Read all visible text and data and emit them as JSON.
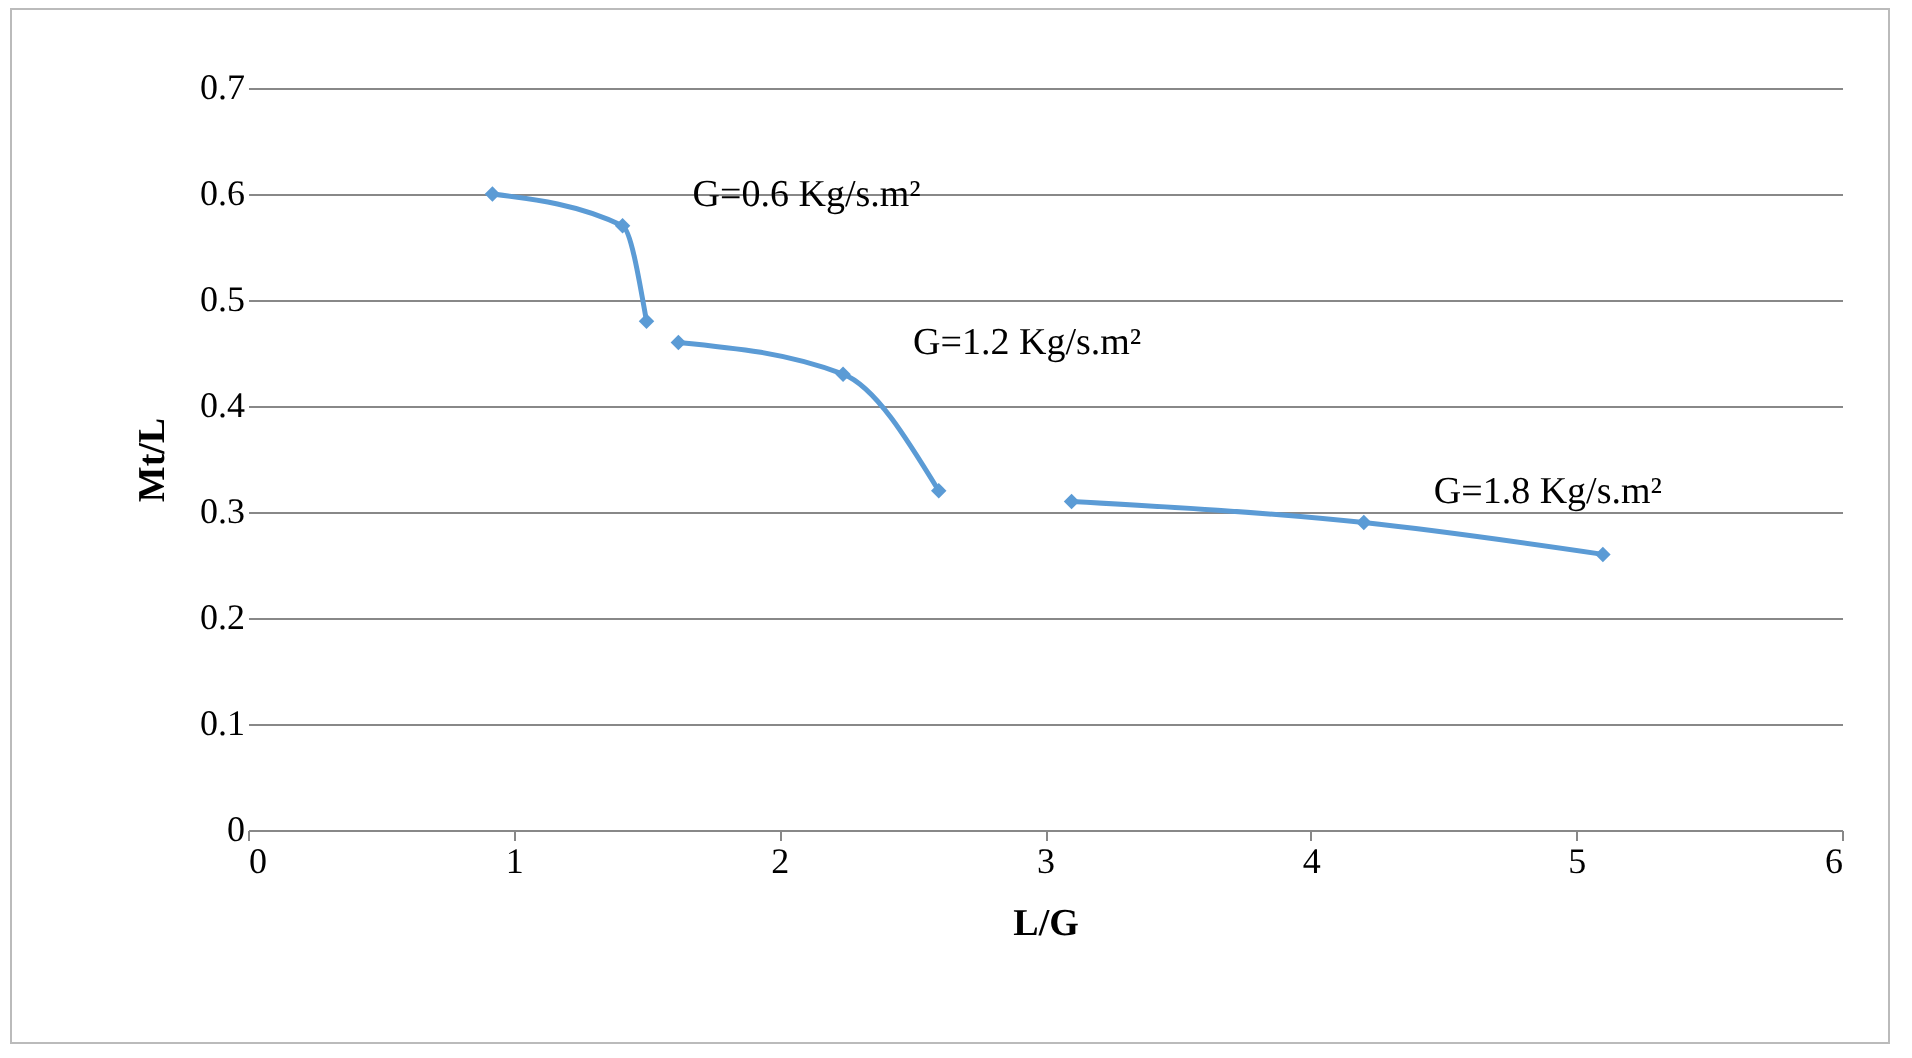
{
  "chart_data": {
    "type": "line",
    "xlabel": "L/G",
    "ylabel": "Mt/L",
    "xlim": [
      0,
      6
    ],
    "xticks": [
      0,
      1,
      2,
      3,
      4,
      5,
      6
    ],
    "ylim": [
      0,
      0.7
    ],
    "yticks": [
      0,
      0.1,
      0.2,
      0.3,
      0.4,
      0.5,
      0.6,
      0.7
    ],
    "grid": "y",
    "marker": "diamond",
    "line_style": "solid",
    "series": [
      {
        "name": "G=0.6 Kg/s.m²",
        "color": "#5b9bd5",
        "x": [
          0.92,
          1.41,
          1.5
        ],
        "values": [
          0.6,
          0.57,
          0.48
        ]
      },
      {
        "name": "G=1.2 Kg/s.m²",
        "color": "#5b9bd5",
        "x": [
          1.62,
          2.24,
          2.6
        ],
        "values": [
          0.46,
          0.43,
          0.32
        ]
      },
      {
        "name": "G=1.8 Kg/s.m²",
        "color": "#5b9bd5",
        "x": [
          3.1,
          4.2,
          5.1
        ],
        "values": [
          0.31,
          0.29,
          0.26
        ]
      }
    ]
  }
}
